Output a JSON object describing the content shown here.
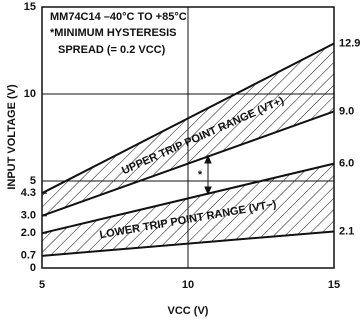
{
  "chart_data": {
    "type": "line",
    "xlabel": "VCC (V)",
    "ylabel": "INPUT VOLTAGE (V)",
    "annotations": [
      "MM74C14 –40°C TO +85°C",
      "*MINIMUM HYSTERESIS",
      "SPREAD (= 0.2 VCC)",
      "UPPER TRIP POINT RANGE (VT+)",
      "LOWER TRIP POINT RANGE (VT−)",
      "*"
    ],
    "x": [
      5,
      15
    ],
    "series": [
      {
        "color": "#111111",
        "values": [
          4.3,
          12.9
        ],
        "value_labels": [
          null,
          "12.9"
        ]
      },
      {
        "color": "#111111",
        "values": [
          3.0,
          9.0
        ],
        "value_labels": [
          null,
          "9.0"
        ]
      },
      {
        "color": "#111111",
        "values": [
          2.0,
          6.0
        ],
        "value_labels": [
          null,
          "6.0"
        ]
      },
      {
        "color": "#111111",
        "values": [
          0.7,
          2.1
        ],
        "value_labels": [
          null,
          "2.1"
        ]
      }
    ],
    "xlim": [
      5,
      15
    ],
    "xticks": [
      5,
      10,
      15
    ],
    "ylim": [
      0,
      15
    ],
    "yticks": [
      0,
      0.7,
      {
        "value": 2,
        "label": "2.0"
      },
      {
        "value": 3,
        "label": "3.0"
      },
      4.3,
      5,
      10,
      15
    ],
    "xgrid": [
      10
    ],
    "ygrid": [
      5,
      10
    ],
    "hatched_bands": [
      [
        0,
        1
      ],
      [
        2,
        3
      ]
    ]
  }
}
